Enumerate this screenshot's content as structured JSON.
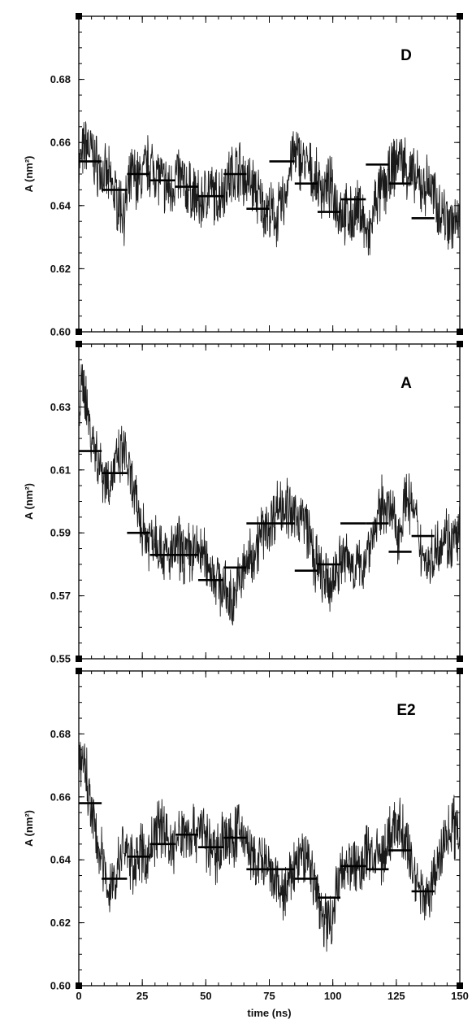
{
  "chart_data": [
    {
      "type": "line",
      "panel_label": "D",
      "ylabel": "A (nm²)",
      "xlabel": "",
      "xlim": [
        0,
        150
      ],
      "ylim": [
        0.6,
        0.7
      ],
      "yticks": [
        "0.60",
        "0.62",
        "0.64",
        "0.66",
        "0.68"
      ],
      "ytick_values": [
        0.6,
        0.62,
        0.64,
        0.66,
        0.68
      ],
      "xtick_values": [
        0,
        25,
        50,
        75,
        100,
        125,
        150
      ],
      "series": [
        {
          "x": [
            0,
            3,
            6,
            9,
            12,
            15,
            18,
            21,
            24,
            27,
            30,
            33,
            36,
            39,
            42,
            45,
            48,
            51,
            54,
            57,
            60,
            63,
            66,
            69,
            72,
            75,
            78,
            81,
            84,
            87,
            90,
            93,
            96,
            99,
            102,
            105,
            108,
            111,
            114,
            117,
            120,
            123,
            126,
            129,
            132,
            135,
            138,
            141,
            144,
            147,
            150
          ],
          "values": [
            0.652,
            0.66,
            0.655,
            0.65,
            0.648,
            0.642,
            0.638,
            0.65,
            0.648,
            0.653,
            0.652,
            0.647,
            0.645,
            0.65,
            0.646,
            0.644,
            0.64,
            0.646,
            0.642,
            0.646,
            0.65,
            0.652,
            0.648,
            0.646,
            0.64,
            0.638,
            0.636,
            0.642,
            0.656,
            0.655,
            0.652,
            0.648,
            0.645,
            0.646,
            0.64,
            0.637,
            0.636,
            0.64,
            0.628,
            0.642,
            0.645,
            0.65,
            0.656,
            0.652,
            0.648,
            0.646,
            0.647,
            0.64,
            0.637,
            0.635,
            0.633
          ]
        }
      ],
      "block_averages": [
        {
          "x0": 0,
          "x1": 9,
          "value": 0.654
        },
        {
          "x0": 9,
          "x1": 19,
          "value": 0.645
        },
        {
          "x0": 19,
          "x1": 28,
          "value": 0.65
        },
        {
          "x0": 28,
          "x1": 38,
          "value": 0.648
        },
        {
          "x0": 38,
          "x1": 47,
          "value": 0.646
        },
        {
          "x0": 47,
          "x1": 57,
          "value": 0.643
        },
        {
          "x0": 57,
          "x1": 66,
          "value": 0.65
        },
        {
          "x0": 66,
          "x1": 75,
          "value": 0.639
        },
        {
          "x0": 75,
          "x1": 85,
          "value": 0.654
        },
        {
          "x0": 85,
          "x1": 94,
          "value": 0.647
        },
        {
          "x0": 94,
          "x1": 103,
          "value": 0.638
        },
        {
          "x0": 103,
          "x1": 113,
          "value": 0.642
        },
        {
          "x0": 113,
          "x1": 122,
          "value": 0.653
        },
        {
          "x0": 122,
          "x1": 131,
          "value": 0.647
        },
        {
          "x0": 131,
          "x1": 140,
          "value": 0.636
        }
      ]
    },
    {
      "type": "line",
      "panel_label": "A",
      "ylabel": "A (nm²)",
      "xlabel": "",
      "xlim": [
        0,
        150
      ],
      "ylim": [
        0.55,
        0.65
      ],
      "yticks": [
        "0.55",
        "0.57",
        "0.59",
        "0.61",
        "0.63"
      ],
      "ytick_values": [
        0.55,
        0.57,
        0.59,
        0.61,
        0.63
      ],
      "xtick_values": [
        0,
        25,
        50,
        75,
        100,
        125,
        150
      ],
      "series": [
        {
          "x": [
            0,
            2,
            4,
            6,
            9,
            12,
            15,
            18,
            21,
            24,
            27,
            30,
            33,
            36,
            39,
            42,
            45,
            48,
            51,
            54,
            57,
            60,
            63,
            66,
            69,
            72,
            75,
            78,
            81,
            84,
            87,
            90,
            93,
            96,
            99,
            102,
            105,
            108,
            111,
            114,
            117,
            120,
            123,
            126,
            129,
            132,
            135,
            138,
            141,
            144,
            147,
            150
          ],
          "values": [
            0.63,
            0.638,
            0.625,
            0.618,
            0.61,
            0.606,
            0.612,
            0.616,
            0.604,
            0.594,
            0.588,
            0.59,
            0.584,
            0.582,
            0.586,
            0.583,
            0.584,
            0.584,
            0.58,
            0.576,
            0.572,
            0.568,
            0.574,
            0.58,
            0.584,
            0.59,
            0.592,
            0.598,
            0.6,
            0.594,
            0.596,
            0.592,
            0.58,
            0.576,
            0.572,
            0.58,
            0.582,
            0.58,
            0.578,
            0.586,
            0.592,
            0.6,
            0.596,
            0.59,
            0.602,
            0.596,
            0.584,
            0.58,
            0.586,
            0.59,
            0.586,
            0.59
          ]
        }
      ],
      "block_averages": [
        {
          "x0": 0,
          "x1": 9,
          "value": 0.616
        },
        {
          "x0": 9,
          "x1": 19,
          "value": 0.609
        },
        {
          "x0": 19,
          "x1": 28,
          "value": 0.59
        },
        {
          "x0": 28,
          "x1": 38,
          "value": 0.583
        },
        {
          "x0": 38,
          "x1": 47,
          "value": 0.583
        },
        {
          "x0": 47,
          "x1": 57,
          "value": 0.575
        },
        {
          "x0": 57,
          "x1": 66,
          "value": 0.579
        },
        {
          "x0": 66,
          "x1": 75,
          "value": 0.593
        },
        {
          "x0": 75,
          "x1": 85,
          "value": 0.593
        },
        {
          "x0": 85,
          "x1": 94,
          "value": 0.578
        },
        {
          "x0": 94,
          "x1": 103,
          "value": 0.58
        },
        {
          "x0": 103,
          "x1": 113,
          "value": 0.593
        },
        {
          "x0": 113,
          "x1": 122,
          "value": 0.593
        },
        {
          "x0": 122,
          "x1": 131,
          "value": 0.584
        },
        {
          "x0": 131,
          "x1": 140,
          "value": 0.589
        }
      ]
    },
    {
      "type": "line",
      "panel_label": "E2",
      "ylabel": "A (nm²)",
      "xlabel": "time (ns)",
      "xlim": [
        0,
        150
      ],
      "ylim": [
        0.6,
        0.7
      ],
      "yticks": [
        "0.60",
        "0.62",
        "0.64",
        "0.66",
        "0.68"
      ],
      "ytick_values": [
        0.6,
        0.62,
        0.64,
        0.66,
        0.68
      ],
      "xticks": [
        "0",
        "25",
        "50",
        "75",
        "100",
        "125",
        "150"
      ],
      "xtick_values": [
        0,
        25,
        50,
        75,
        100,
        125,
        150
      ],
      "series": [
        {
          "x": [
            0,
            2,
            4,
            6,
            9,
            12,
            15,
            18,
            21,
            24,
            27,
            30,
            33,
            36,
            39,
            42,
            45,
            48,
            51,
            54,
            57,
            60,
            63,
            66,
            69,
            72,
            75,
            78,
            81,
            84,
            87,
            90,
            93,
            96,
            99,
            102,
            105,
            108,
            111,
            114,
            117,
            120,
            123,
            126,
            129,
            132,
            135,
            138,
            141,
            144,
            147,
            150
          ],
          "values": [
            0.668,
            0.672,
            0.66,
            0.65,
            0.64,
            0.63,
            0.636,
            0.645,
            0.638,
            0.642,
            0.64,
            0.648,
            0.652,
            0.644,
            0.646,
            0.65,
            0.648,
            0.652,
            0.644,
            0.642,
            0.648,
            0.645,
            0.65,
            0.646,
            0.638,
            0.64,
            0.635,
            0.632,
            0.628,
            0.636,
            0.64,
            0.642,
            0.632,
            0.622,
            0.62,
            0.632,
            0.64,
            0.638,
            0.636,
            0.644,
            0.64,
            0.642,
            0.648,
            0.652,
            0.645,
            0.636,
            0.63,
            0.628,
            0.638,
            0.646,
            0.652,
            0.648
          ]
        }
      ],
      "block_averages": [
        {
          "x0": 0,
          "x1": 9,
          "value": 0.658
        },
        {
          "x0": 9,
          "x1": 19,
          "value": 0.634
        },
        {
          "x0": 19,
          "x1": 28,
          "value": 0.641
        },
        {
          "x0": 28,
          "x1": 38,
          "value": 0.645
        },
        {
          "x0": 38,
          "x1": 47,
          "value": 0.648
        },
        {
          "x0": 47,
          "x1": 57,
          "value": 0.644
        },
        {
          "x0": 57,
          "x1": 66,
          "value": 0.647
        },
        {
          "x0": 66,
          "x1": 75,
          "value": 0.637
        },
        {
          "x0": 75,
          "x1": 85,
          "value": 0.637
        },
        {
          "x0": 85,
          "x1": 94,
          "value": 0.634
        },
        {
          "x0": 94,
          "x1": 103,
          "value": 0.628
        },
        {
          "x0": 103,
          "x1": 113,
          "value": 0.638
        },
        {
          "x0": 113,
          "x1": 122,
          "value": 0.637
        },
        {
          "x0": 122,
          "x1": 131,
          "value": 0.643
        },
        {
          "x0": 131,
          "x1": 140,
          "value": 0.63
        }
      ]
    }
  ]
}
